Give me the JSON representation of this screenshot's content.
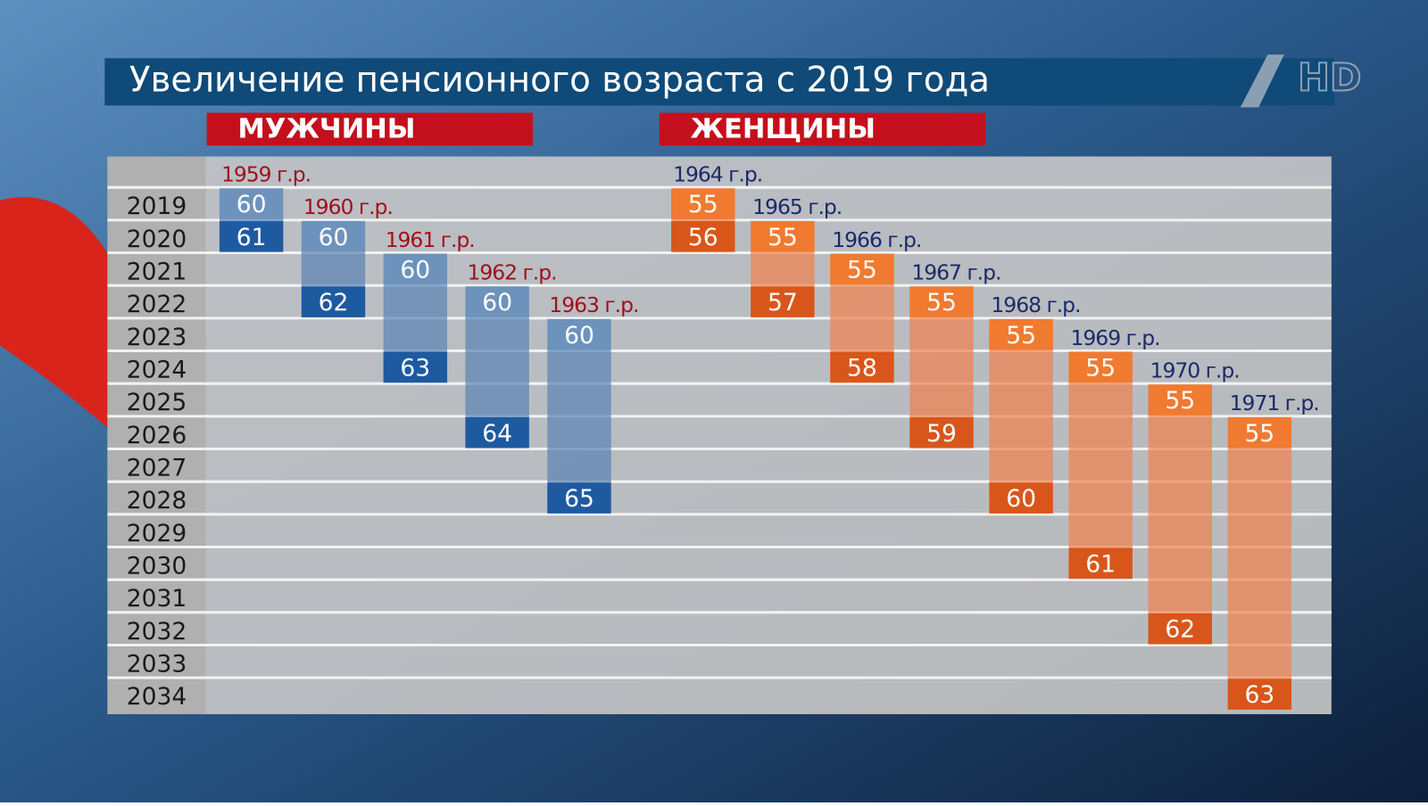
{
  "title": "Увеличение пенсионного возраста с 2019 года",
  "logo": "HD",
  "years": [
    2019,
    2020,
    2021,
    2022,
    2023,
    2024,
    2025,
    2026,
    2027,
    2028,
    2029,
    2030,
    2031,
    2032,
    2033,
    2034
  ],
  "groups": [
    {
      "label": "МУЖЧИНЫ",
      "cohorts": [
        {
          "label": "1959 г.р.",
          "from": 2019,
          "to": 2020,
          "start_age": 60,
          "end_age": 61
        },
        {
          "label": "1960 г.р.",
          "from": 2020,
          "to": 2022,
          "start_age": 60,
          "end_age": 62
        },
        {
          "label": "1961 г.р.",
          "from": 2021,
          "to": 2024,
          "start_age": 60,
          "end_age": 63
        },
        {
          "label": "1962 г.р.",
          "from": 2022,
          "to": 2026,
          "start_age": 60,
          "end_age": 64
        },
        {
          "label": "1963 г.р.",
          "from": 2023,
          "to": 2028,
          "start_age": 60,
          "end_age": 65
        }
      ]
    },
    {
      "label": "ЖЕНЩИНЫ",
      "cohorts": [
        {
          "label": "1964 г.р.",
          "from": 2019,
          "to": 2020,
          "start_age": 55,
          "end_age": 56
        },
        {
          "label": "1965 г.р.",
          "from": 2020,
          "to": 2022,
          "start_age": 55,
          "end_age": 57
        },
        {
          "label": "1966 г.р.",
          "from": 2021,
          "to": 2024,
          "start_age": 55,
          "end_age": 58
        },
        {
          "label": "1967 г.р.",
          "from": 2022,
          "to": 2026,
          "start_age": 55,
          "end_age": 59
        },
        {
          "label": "1968 г.р.",
          "from": 2023,
          "to": 2028,
          "start_age": 55,
          "end_age": 60
        },
        {
          "label": "1969 г.р.",
          "from": 2024,
          "to": 2030,
          "start_age": 55,
          "end_age": 61
        },
        {
          "label": "1970 г.р.",
          "from": 2025,
          "to": 2032,
          "start_age": 55,
          "end_age": 62
        },
        {
          "label": "1971 г.р.",
          "from": 2026,
          "to": 2034,
          "start_age": 55,
          "end_age": 63
        }
      ]
    }
  ]
}
